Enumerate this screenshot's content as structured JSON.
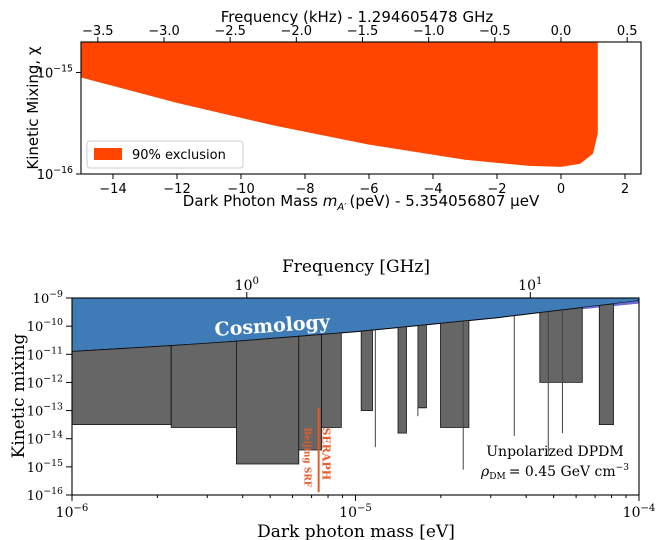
{
  "chart_data": [
    {
      "type": "area",
      "xlabel": "Dark Photon Mass",
      "xlabel_var": "m",
      "xlabel_sub": "A′",
      "xlabel_unit": "(peV) - 5.354056807 μeV",
      "ylabel": "Kinetic Mixing, χ",
      "top_xlabel": "Frequency (kHz) - 1.294605478 GHz",
      "xlim": [
        -15.0,
        2.5
      ],
      "ylim_log10": [
        -16.0,
        -14.7
      ],
      "y_scale": "log",
      "x_ticks": [
        "−14",
        "−12",
        "−10",
        "−8",
        "−6",
        "−4",
        "−2",
        "0",
        "2"
      ],
      "x_tick_values": [
        -14,
        -12,
        -10,
        -8,
        -6,
        -4,
        -2,
        0,
        2
      ],
      "y_ticks": [
        {
          "base": "10",
          "exp": "−15",
          "value": -15
        },
        {
          "base": "10",
          "exp": "−16",
          "value": -16
        }
      ],
      "top_ticks": [
        "−3.5",
        "−3.0",
        "−2.5",
        "−2.0",
        "−1.5",
        "−1.0",
        "−0.5",
        "0.0",
        "0.5"
      ],
      "top_tick_values": [
        -3.5,
        -3.0,
        -2.5,
        -2.0,
        -1.5,
        -1.0,
        -0.5,
        0.0,
        0.5
      ],
      "legend": {
        "label": "90% exclusion",
        "placement": "lower-left"
      },
      "exclusion_color": "#ff4500",
      "lower_boundary": [
        {
          "x": -15.0,
          "log10_chi": -15.05
        },
        {
          "x": -12.0,
          "log10_chi": -15.3
        },
        {
          "x": -9.0,
          "log10_chi": -15.52
        },
        {
          "x": -6.0,
          "log10_chi": -15.71
        },
        {
          "x": -3.0,
          "log10_chi": -15.86
        },
        {
          "x": -1.0,
          "log10_chi": -15.92
        },
        {
          "x": 0.0,
          "log10_chi": -15.93
        },
        {
          "x": 0.6,
          "log10_chi": -15.9
        },
        {
          "x": 1.0,
          "log10_chi": -15.8
        },
        {
          "x": 1.15,
          "log10_chi": -15.6
        }
      ]
    },
    {
      "type": "area",
      "xlabel": "Dark photon mass [eV]",
      "ylabel": "Kinetic mixing",
      "top_xlabel": "Frequency [GHz]",
      "x_scale": "log",
      "y_scale": "log",
      "xlim_log10": [
        -6,
        -4
      ],
      "ylim_log10": [
        -16,
        -9
      ],
      "x_ticks": [
        {
          "base": "10",
          "exp": "−6",
          "value": -6
        },
        {
          "base": "10",
          "exp": "−5",
          "value": -5
        },
        {
          "base": "10",
          "exp": "−4",
          "value": -4
        }
      ],
      "top_ticks": [
        {
          "base": "10",
          "exp": "0",
          "value": 0
        },
        {
          "base": "10",
          "exp": "1",
          "value": 1
        }
      ],
      "y_ticks": [
        {
          "base": "10",
          "exp": "−9",
          "value": -9
        },
        {
          "base": "10",
          "exp": "−10",
          "value": -10
        },
        {
          "base": "10",
          "exp": "−11",
          "value": -11
        },
        {
          "base": "10",
          "exp": "−12",
          "value": -12
        },
        {
          "base": "10",
          "exp": "−13",
          "value": -13
        },
        {
          "base": "10",
          "exp": "−14",
          "value": -14
        },
        {
          "base": "10",
          "exp": "−15",
          "value": -15
        },
        {
          "base": "10",
          "exp": "−16",
          "value": -16
        }
      ],
      "cosmology": {
        "label": "Cosmology",
        "color": "#3f7cb7",
        "lower_boundary": [
          {
            "log10_m": -6.0,
            "log10_chi": -10.9
          },
          {
            "log10_m": -5.5,
            "log10_chi": -10.6
          },
          {
            "log10_m": -5.0,
            "log10_chi": -10.2
          },
          {
            "log10_m": -4.5,
            "log10_chi": -9.7
          },
          {
            "log10_m": -4.0,
            "log10_chi": -9.1
          }
        ]
      },
      "excluded_color": "#666666",
      "excluded_regions": [
        {
          "m1": -6.0,
          "m2": -5.65,
          "chi": -13.5
        },
        {
          "m1": -5.65,
          "m2": -5.42,
          "chi": -13.6
        },
        {
          "m1": -5.42,
          "m2": -5.2,
          "chi": -14.9
        },
        {
          "m1": -5.2,
          "m2": -5.12,
          "chi": -14.4
        },
        {
          "m1": -5.12,
          "m2": -5.05,
          "chi": -13.6
        },
        {
          "m1": -4.98,
          "m2": -4.94,
          "chi": -13.0
        },
        {
          "m1": -4.85,
          "m2": -4.82,
          "chi": -13.8
        },
        {
          "m1": -4.78,
          "m2": -4.75,
          "chi": -12.9
        },
        {
          "m1": -4.7,
          "m2": -4.6,
          "chi": -13.6
        },
        {
          "m1": -4.35,
          "m2": -4.2,
          "chi": -12.0
        },
        {
          "m1": -4.14,
          "m2": -4.09,
          "chi": -13.5
        }
      ],
      "seraph": {
        "label": "SERAPH",
        "sublabel": "Beijing SRF",
        "log10_m": -5.13,
        "color": "#e55b2a"
      },
      "annotation_lines": [
        "Unpolarized DPDM",
        "ρ_DM = 0.45 GeV cm⁻³"
      ],
      "annotation_sub": "DM",
      "annotation_value": "= 0.45 GeV cm",
      "annotation_exp": "−3"
    }
  ]
}
